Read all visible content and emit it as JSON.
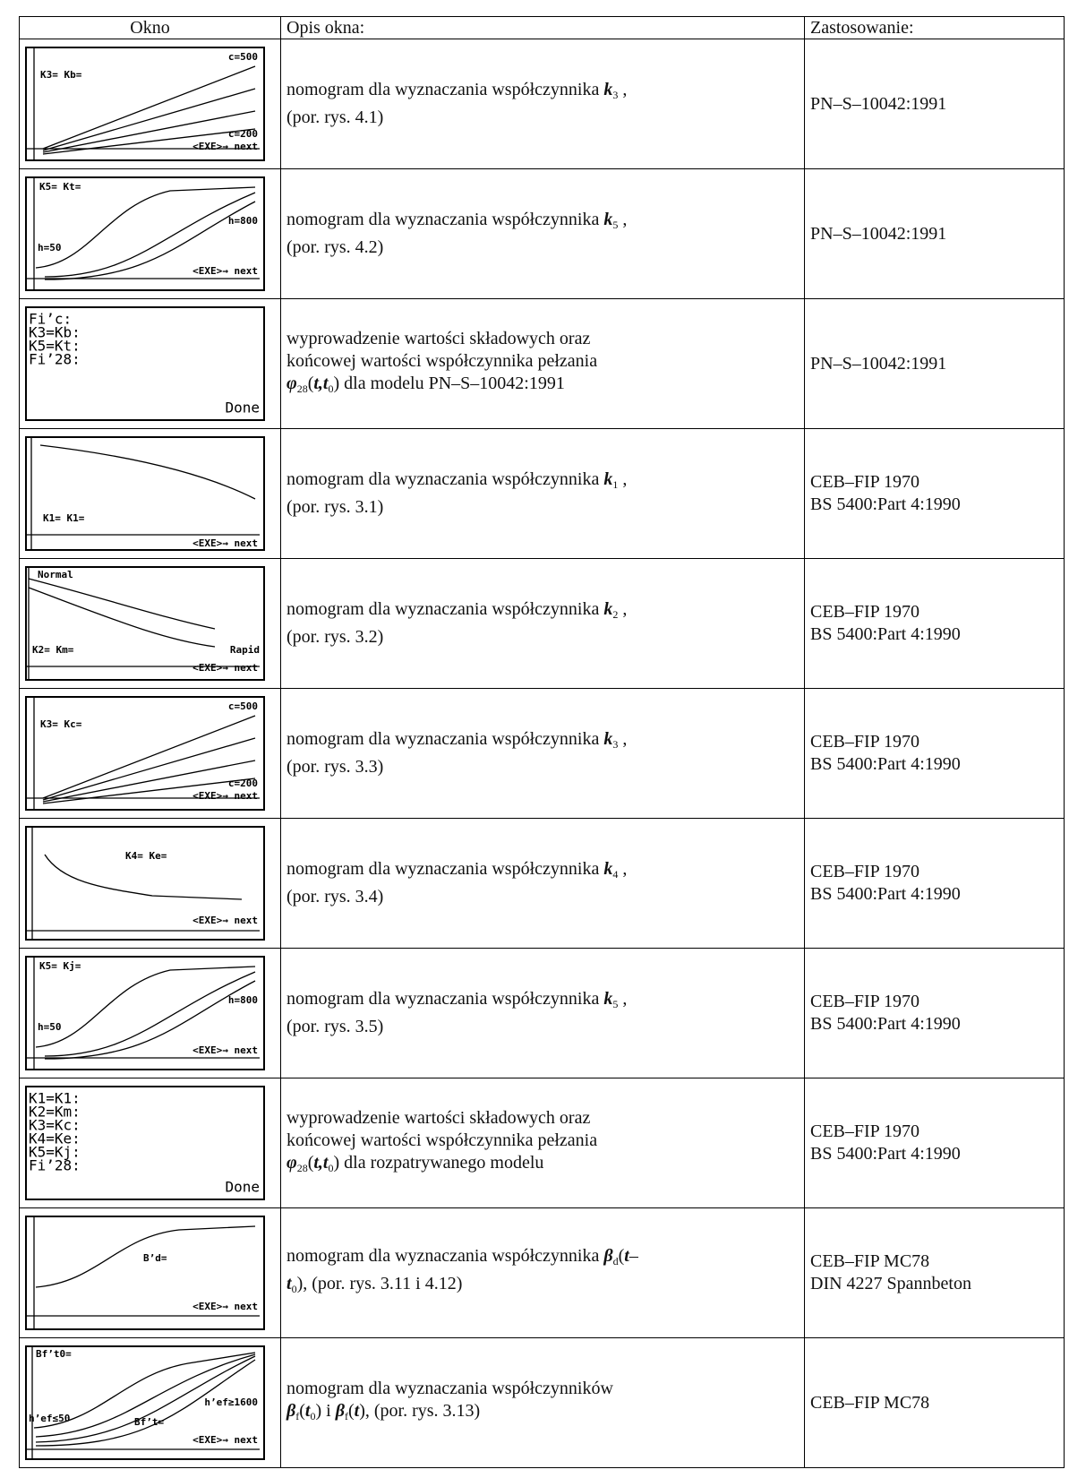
{
  "table": {
    "header": [
      "Okno",
      "Opis okna:",
      "Zastosowanie:"
    ],
    "rows": [
      {
        "screen": [
          "K3= Kb=",
          "c=500",
          "c=200",
          "<EXE>→ next"
        ],
        "desc": [
          [
            "nomogram dla wyznaczania współczynnika ",
            {
              "bi": "k"
            },
            {
              "sub": "3"
            },
            " ,"
          ],
          [
            "(por. rys. 4.1)"
          ]
        ],
        "use": [
          "PN–S–10042:1991"
        ]
      },
      {
        "screen": [
          "K5= Kt=",
          "h=800",
          "h=50",
          "<EXE>→ next"
        ],
        "desc": [
          [
            "nomogram dla wyznaczania współczynnika ",
            {
              "bi": "k"
            },
            {
              "sub": "5"
            },
            " ,"
          ],
          [
            "(por. rys. 4.2)"
          ]
        ],
        "use": [
          "PN–S–10042:1991"
        ]
      },
      {
        "screen": [
          "Fi’c:",
          "K3=Kb:",
          "K5=Kt:",
          "Fi’28:",
          "Done"
        ],
        "desc": [
          [
            "wyprowadzenie wartości składowych oraz"
          ],
          [
            "końcowej wartości współczynnika pełzania"
          ],
          [
            {
              "bi": "φ"
            },
            {
              "sub": "28"
            },
            "(",
            {
              "bi": "t,t"
            },
            {
              "sub": "0"
            },
            ") dla modelu PN–S–10042:1991"
          ]
        ],
        "use": [
          "PN–S–10042:1991"
        ]
      },
      {
        "screen": [
          "K1= K1=",
          "<EXE>→ next"
        ],
        "desc": [
          [
            "nomogram dla wyznaczania współczynnika ",
            {
              "bi": "k"
            },
            {
              "sub": "1"
            },
            " ,"
          ],
          [
            "(por. rys. 3.1)"
          ]
        ],
        "use": [
          "CEB–FIP 1970",
          "BS 5400:Part 4:1990"
        ]
      },
      {
        "screen": [
          "Normal",
          "K2= Km=",
          "Rapid",
          "<EXE>→ next"
        ],
        "desc": [
          [
            "nomogram dla wyznaczania współczynnika ",
            {
              "bi": "k"
            },
            {
              "sub": "2"
            },
            " ,"
          ],
          [
            "(por. rys. 3.2)"
          ]
        ],
        "use": [
          "CEB–FIP 1970",
          "BS 5400:Part 4:1990"
        ]
      },
      {
        "screen": [
          "K3= Kc=",
          "c=500",
          "c=200",
          "<EXE>→ next"
        ],
        "desc": [
          [
            "nomogram dla wyznaczania współczynnika ",
            {
              "bi": "k"
            },
            {
              "sub": "3"
            },
            " ,"
          ],
          [
            "(por. rys. 3.3)"
          ]
        ],
        "use": [
          "CEB–FIP 1970",
          "BS 5400:Part 4:1990"
        ]
      },
      {
        "screen": [
          "K4= Ke=",
          "<EXE>→ next"
        ],
        "desc": [
          [
            "nomogram dla wyznaczania współczynnika ",
            {
              "bi": "k"
            },
            {
              "sub": "4"
            },
            " ,"
          ],
          [
            "(por. rys. 3.4)"
          ]
        ],
        "use": [
          "CEB–FIP 1970",
          "BS 5400:Part 4:1990"
        ]
      },
      {
        "screen": [
          "K5= Kj=",
          "h=800",
          "h=50",
          "<EXE>→ next"
        ],
        "desc": [
          [
            "nomogram dla wyznaczania współczynnika ",
            {
              "bi": "k"
            },
            {
              "sub": "5"
            },
            " ,"
          ],
          [
            "(por. rys. 3.5)"
          ]
        ],
        "use": [
          "CEB–FIP 1970",
          "BS 5400:Part 4:1990"
        ]
      },
      {
        "screen": [
          "K1=K1:",
          "K2=Km:",
          "K3=Kc:",
          "K4=Ke:",
          "K5=Kj:",
          "Fi’28:",
          "Done"
        ],
        "desc": [
          [
            "wyprowadzenie wartości składowych oraz"
          ],
          [
            "końcowej wartości współczynnika pełzania"
          ],
          [
            {
              "bi": "φ"
            },
            {
              "sub": "28"
            },
            "(",
            {
              "bi": "t,t"
            },
            {
              "sub": "0"
            },
            ") dla rozpatrywanego modelu"
          ]
        ],
        "use": [
          "CEB–FIP 1970",
          "BS 5400:Part 4:1990"
        ]
      },
      {
        "screen": [
          "B’d=",
          "<EXE>→ next"
        ],
        "desc": [
          [
            "nomogram dla wyznaczania współczynnika ",
            {
              "bi": "β"
            },
            {
              "sub": "d"
            },
            "(",
            {
              "bi": "t"
            },
            "–"
          ],
          [
            {
              "bi": "t"
            },
            {
              "sub": "0"
            },
            "), (por. rys. 3.11 i 4.12)"
          ]
        ],
        "use": [
          "CEB–FIP MC78",
          "DIN 4227 Spannbeton"
        ]
      },
      {
        "screen": [
          "Bf’t0=",
          "h’ef≥1600",
          "h’ef≤50",
          "Bf’t=",
          "<EXE>→ next"
        ],
        "desc": [
          [
            "nomogram dla wyznaczania współczynników"
          ],
          [
            {
              "bi": "β"
            },
            {
              "sub": "f"
            },
            "(",
            {
              "bi": "t"
            },
            {
              "sub": "0"
            },
            ") i ",
            {
              "bi": "β"
            },
            {
              "sub": "f"
            },
            "(",
            {
              "bi": "t"
            },
            "), (por. rys. 3.13)"
          ]
        ],
        "use": [
          "CEB–FIP MC78"
        ]
      }
    ]
  }
}
